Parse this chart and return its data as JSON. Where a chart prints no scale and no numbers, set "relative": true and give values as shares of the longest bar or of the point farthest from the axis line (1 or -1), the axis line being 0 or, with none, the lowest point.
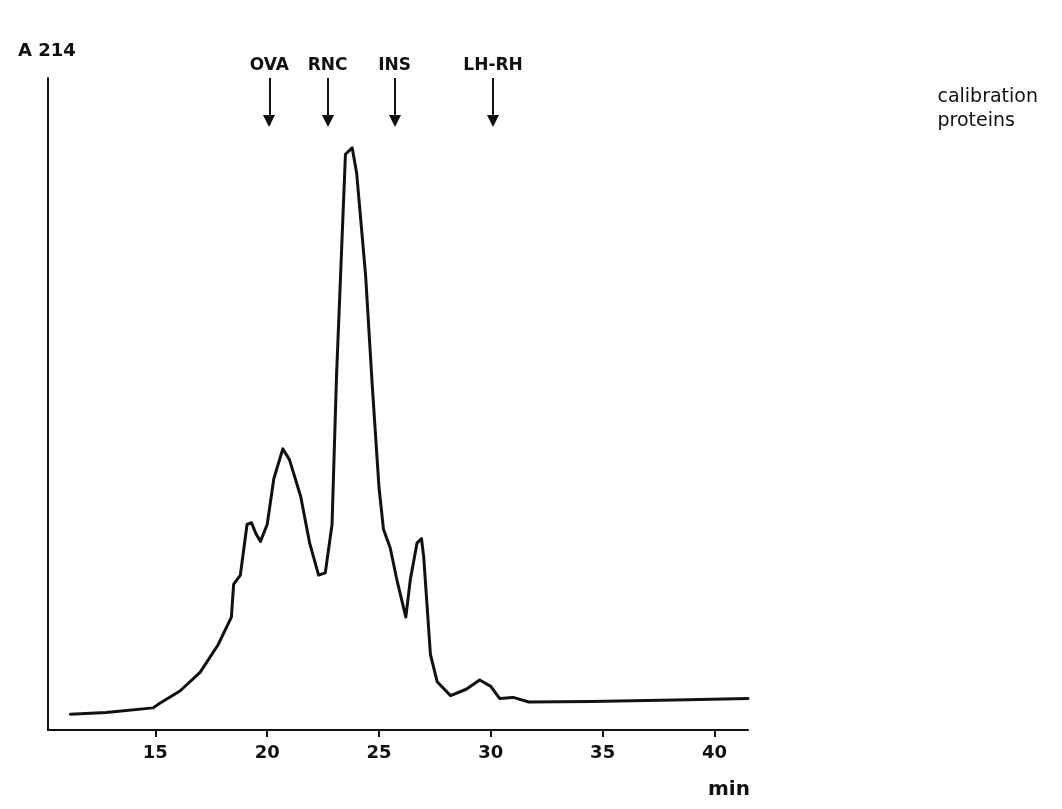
{
  "chart_data": {
    "type": "line",
    "relative": true,
    "ylabel": "A 214",
    "xlabel": "min",
    "x": [
      11.2,
      12.8,
      14.9,
      15.2,
      16.1,
      17.0,
      17.8,
      18.4,
      18.5,
      18.8,
      19.1,
      19.3,
      19.5,
      19.7,
      20.0,
      20.3,
      20.7,
      21.0,
      21.5,
      21.9,
      22.3,
      22.6,
      22.9,
      23.1,
      23.3,
      23.5,
      23.8,
      24.0,
      24.4,
      24.7,
      25.0,
      25.2,
      25.5,
      25.8,
      26.2,
      26.4,
      26.7,
      26.9,
      27.0,
      27.3,
      27.6,
      28.2,
      28.9,
      29.5,
      30.0,
      30.4,
      31.0,
      31.7,
      34.5,
      38.8,
      41.5
    ],
    "values": [
      0.027,
      0.03,
      0.038,
      0.046,
      0.067,
      0.099,
      0.146,
      0.194,
      0.25,
      0.266,
      0.353,
      0.356,
      0.337,
      0.324,
      0.353,
      0.432,
      0.483,
      0.464,
      0.401,
      0.321,
      0.266,
      0.27,
      0.353,
      0.607,
      0.798,
      0.989,
      1,
      0.957,
      0.782,
      0.591,
      0.417,
      0.345,
      0.313,
      0.258,
      0.194,
      0.258,
      0.321,
      0.329,
      0.297,
      0.13,
      0.083,
      0.059,
      0.07,
      0.086,
      0.075,
      0.054,
      0.056,
      0.048,
      0.049,
      0.052,
      0.054
    ],
    "color": "#111111",
    "marker": "none",
    "line_style": "solid",
    "grid": false,
    "xlim": [
      10.2,
      41.5
    ],
    "xticks": [
      15,
      20,
      25,
      30,
      35,
      40
    ],
    "ref_lines": [
      {
        "axis": "x",
        "value": 20.1,
        "label": "OVA"
      },
      {
        "axis": "x",
        "value": 22.7,
        "label": "RNC"
      },
      {
        "axis": "x",
        "value": 25.7,
        "label": "INS"
      },
      {
        "axis": "x",
        "value": 30.1,
        "label": "LH-RH"
      }
    ],
    "annotations": [
      "calibration proteins"
    ]
  }
}
